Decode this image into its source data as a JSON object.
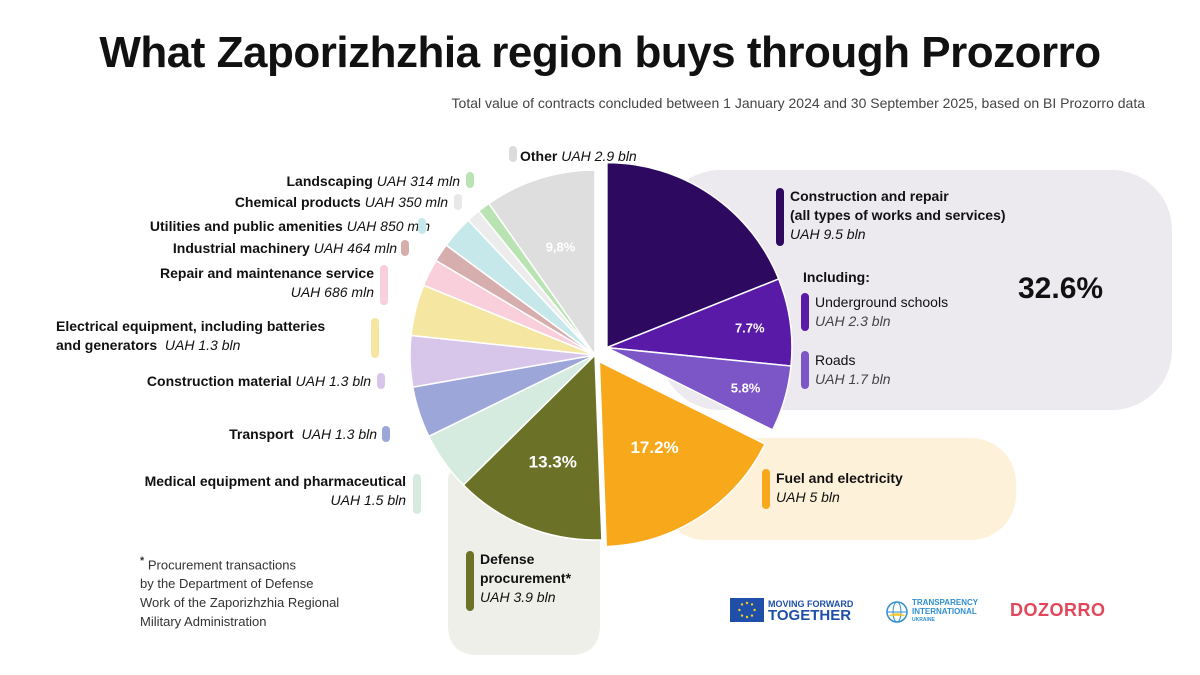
{
  "title": "What Zaporizhzhia region buys through Prozorro",
  "subtitle": "Total value of contracts concluded between 1 January 2024 and 30 September 2025, based on BI Prozorro data",
  "chart_data": {
    "type": "pie",
    "slices": [
      {
        "name": "Construction and repair (all types of works and services)",
        "value_label": "UAH 9.5 bln",
        "percent": 32.6,
        "color": "#2d0a5f",
        "label": "32.6%"
      },
      {
        "name": "Fuel and electricity",
        "value_label": "UAH 5 bln",
        "percent": 17.2,
        "color": "#f7a81b",
        "label": "17.2%"
      },
      {
        "name": "Defense procurement*",
        "value_label": "UAH 3.9 bln",
        "percent": 13.3,
        "color": "#6b7126",
        "label": "13.3%"
      },
      {
        "name": "Medical equipment and pharmaceutical",
        "value_label": "UAH 1.5 bln",
        "percent": 5.2,
        "color": "#d6ebe0"
      },
      {
        "name": "Transport",
        "value_label": "UAH 1.3 bln",
        "percent": 4.5,
        "color": "#9da6d9"
      },
      {
        "name": "Construction material",
        "value_label": "UAH 1.3 bln",
        "percent": 4.5,
        "color": "#d8c6ea"
      },
      {
        "name": "Electrical equipment, including batteries and generators",
        "value_label": "UAH 1.3 bln",
        "percent": 4.5,
        "color": "#f5e7a2"
      },
      {
        "name": "Repair and maintenance service",
        "value_label": "UAH 686 mln",
        "percent": 2.4,
        "color": "#f9cfdc"
      },
      {
        "name": "Industrial machinery",
        "value_label": "UAH 464 mln",
        "percent": 1.6,
        "color": "#d6aeae"
      },
      {
        "name": "Utilities and public amenities",
        "value_label": "UAH 850 mln",
        "percent": 2.9,
        "color": "#c7e8ea"
      },
      {
        "name": "Chemical products",
        "value_label": "UAH 350 mln",
        "percent": 1.2,
        "color": "#ececec"
      },
      {
        "name": "Landscaping",
        "value_label": "UAH 314 mln",
        "percent": 1.1,
        "color": "#b9e3b2"
      },
      {
        "name": "Other",
        "value_label": "UAH 2.9 bln",
        "percent": 9.8,
        "color": "#dedede",
        "label": "9,8%"
      }
    ],
    "sub_slices": [
      {
        "name": "Underground schools",
        "value_label": "UAH 2.3 bln",
        "percent": 7.7,
        "color": "#5a1aa8",
        "label": "7.7%"
      },
      {
        "name": "Roads",
        "value_label": "UAH 1.7 bln",
        "percent": 5.8,
        "color": "#7c56c6",
        "label": "5.8%"
      }
    ],
    "including_label": "Including:",
    "construction_total_label": "32.6%"
  },
  "labels": {
    "other": {
      "name": "Other",
      "value": "UAH 2.9 bln"
    },
    "landscaping": {
      "name": "Landscaping",
      "value": "UAH 314 mln"
    },
    "chemical": {
      "name": "Chemical products",
      "value": "UAH 350 mln"
    },
    "utilities": {
      "name": "Utilities and public amenities",
      "value": "UAH 850 mln"
    },
    "industrial": {
      "name": "Industrial machinery",
      "value": "UAH 464 mln"
    },
    "repair_line1": "Repair and maintenance service",
    "repair_value": "UAH 686 mln",
    "electrical_line1": "Electrical equipment, including batteries",
    "electrical_line2": "and generators",
    "electrical_value": "UAH 1.3 bln",
    "construction_material": {
      "name": "Construction material",
      "value": "UAH 1.3 bln"
    },
    "transport": {
      "name": "Transport",
      "value": "UAH 1.3 bln"
    },
    "medical_line1": "Medical equipment and pharmaceutical",
    "medical_value": "UAH 1.5 bln",
    "construction_line1": "Construction and repair",
    "construction_line2": "(all types of works and services)",
    "construction_value": "UAH 9.5 bln",
    "underground": {
      "name": "Underground schools",
      "value": "UAH 2.3 bln"
    },
    "roads": {
      "name": "Roads",
      "value": "UAH 1.7 bln"
    },
    "fuel": {
      "name": "Fuel and electricity",
      "value": "UAH 5 bln"
    },
    "defense_line1": "Defense",
    "defense_line2": "procurement*",
    "defense_value": "UAH 3.9 bln"
  },
  "footnote": {
    "mark": "*",
    "lines": [
      "Procurement transactions",
      "by the Department of Defense",
      "Work of the Zaporizhzhia Regional",
      "Military Administration"
    ]
  },
  "logos": {
    "eu_line1": "MOVING FORWARD",
    "eu_line2": "TOGETHER",
    "ti_line1": "TRANSPARENCY",
    "ti_line2": "INTERNATIONAL",
    "ti_line3": "UKRAINE",
    "dozorro": "DOZORRO"
  }
}
